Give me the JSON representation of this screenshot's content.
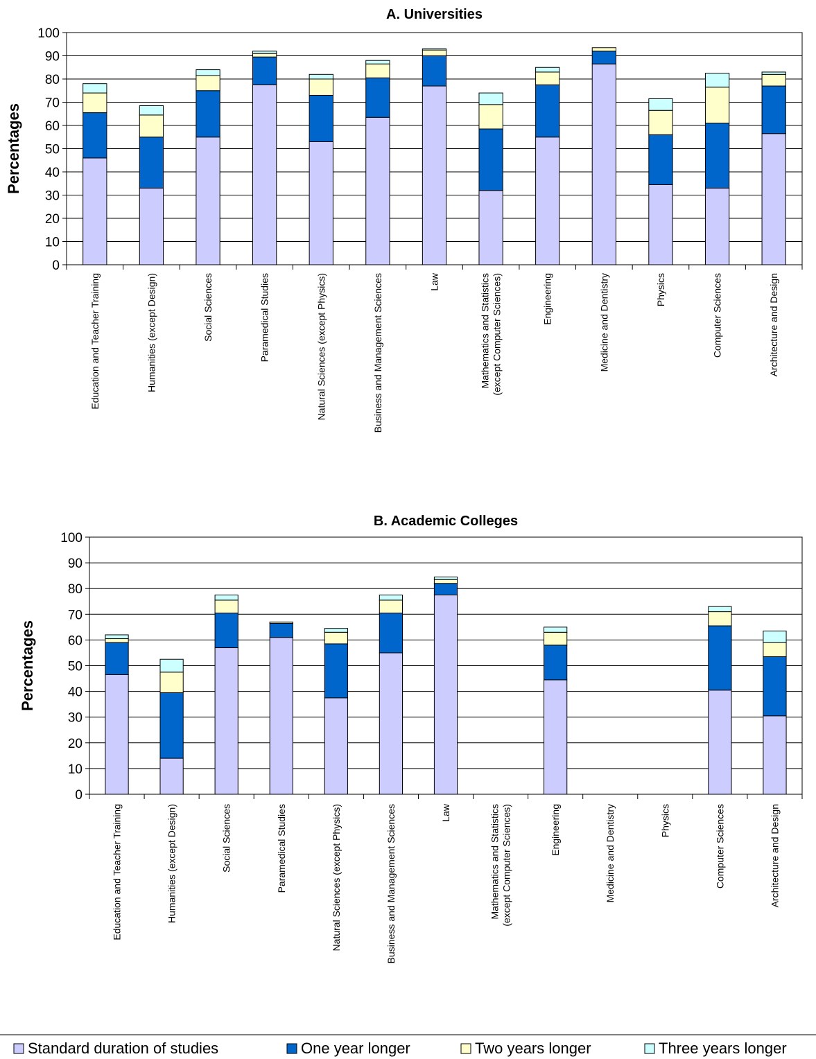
{
  "chart_data": [
    {
      "type": "bar",
      "stacked": true,
      "title": "A. Universities",
      "ylabel": "Percentages",
      "xlabel": "",
      "ylim": [
        0,
        100
      ],
      "yticks": [
        0,
        10,
        20,
        30,
        40,
        50,
        60,
        70,
        80,
        90,
        100
      ],
      "grid": true,
      "categories": [
        "Education and Teacher Training",
        "Humanities (except Design)",
        "Social Sciences",
        "Paramedical Studies",
        "Natural Sciences (except Physics)",
        "Business and Management Sciences",
        "Law",
        "Mathematics and Statistics (except Computer Sciences)",
        "Engineering",
        "Medicine and Dentistry",
        "Physics",
        "Computer Sciences",
        "Architecture and Design"
      ],
      "category_lines": [
        [
          "Education and Teacher Training"
        ],
        [
          "Humanities (except Design)"
        ],
        [
          "Social Sciences"
        ],
        [
          "Paramedical Studies"
        ],
        [
          "Natural Sciences (except Physics)"
        ],
        [
          "Business and Management Sciences"
        ],
        [
          "Law"
        ],
        [
          "Mathematics and Statistics",
          "(except Computer Sciences)"
        ],
        [
          "Engineering"
        ],
        [
          "Medicine and Dentistry"
        ],
        [
          "Physics"
        ],
        [
          "Computer Sciences"
        ],
        [
          "Architecture and Design"
        ]
      ],
      "series": [
        {
          "name": "Standard duration of studies",
          "values": [
            46,
            33,
            55,
            77.5,
            53,
            63.5,
            77,
            32,
            55,
            86.5,
            34.5,
            33,
            56.5
          ]
        },
        {
          "name": "One year longer",
          "values": [
            19.5,
            22,
            20,
            12,
            20,
            17,
            13,
            26.5,
            22.5,
            5.5,
            21.5,
            28,
            20.5
          ]
        },
        {
          "name": "Two years longer",
          "values": [
            8.5,
            9.5,
            6.5,
            1.5,
            7,
            6,
            2.5,
            10.5,
            5.5,
            1.5,
            10.5,
            15.5,
            5
          ]
        },
        {
          "name": "Three years longer",
          "values": [
            4,
            4,
            2.5,
            1,
            2,
            1.5,
            0.5,
            5,
            2,
            0,
            5,
            6,
            1
          ]
        }
      ]
    },
    {
      "type": "bar",
      "stacked": true,
      "title": "B. Academic Colleges",
      "ylabel": "Percentages",
      "xlabel": "",
      "ylim": [
        0,
        100
      ],
      "yticks": [
        0,
        10,
        20,
        30,
        40,
        50,
        60,
        70,
        80,
        90,
        100
      ],
      "grid": true,
      "categories": [
        "Education and Teacher Training",
        "Humanities (except Design)",
        "Social Sciences",
        "Paramedical Studies",
        "Natural Sciences (except Physics)",
        "Business and Management Sciences",
        "Law",
        "Mathematics and Statistics (except Computer Sciences)",
        "Engineering",
        "Medicine and Dentistry",
        "Physics",
        "Computer Sciences",
        "Architecture and Design"
      ],
      "category_lines": [
        [
          "Education and Teacher Training"
        ],
        [
          "Humanities (except Design)"
        ],
        [
          "Social Sciences"
        ],
        [
          "Paramedical Studies"
        ],
        [
          "Natural Sciences (except Physics)"
        ],
        [
          "Business and Management Sciences"
        ],
        [
          "Law"
        ],
        [
          "Mathematics and Statistics",
          "(except Computer Sciences)"
        ],
        [
          "Engineering"
        ],
        [
          "Medicine and Dentistry"
        ],
        [
          "Physics"
        ],
        [
          "Computer Sciences"
        ],
        [
          "Architecture and Design"
        ]
      ],
      "series": [
        {
          "name": "Standard duration of studies",
          "values": [
            46.5,
            14,
            57,
            61,
            37.5,
            55,
            77.5,
            0,
            44.5,
            0,
            0,
            40.5,
            30.5
          ]
        },
        {
          "name": "One year longer",
          "values": [
            12.5,
            25.5,
            13.5,
            5.5,
            21,
            15.5,
            4.5,
            0,
            13.5,
            0,
            0,
            25,
            23
          ]
        },
        {
          "name": "Two years longer",
          "values": [
            1.5,
            8,
            5,
            0.5,
            4.5,
            5,
            1.5,
            0,
            5,
            0,
            0,
            5.5,
            5.5
          ]
        },
        {
          "name": "Three years longer",
          "values": [
            1.5,
            5,
            2,
            0,
            1.5,
            2,
            1,
            0,
            2,
            0,
            0,
            2,
            4.5
          ]
        }
      ]
    }
  ],
  "legend": {
    "placement": "bottom",
    "items": [
      {
        "label": "Standard duration of studies",
        "color": "#ccccff"
      },
      {
        "label": "One year longer",
        "color": "#0066cc"
      },
      {
        "label": "Two years longer",
        "color": "#ffffcc"
      },
      {
        "label": "Three years longer",
        "color": "#ccffff"
      }
    ]
  }
}
